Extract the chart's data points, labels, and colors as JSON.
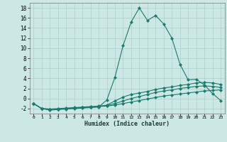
{
  "xlabel": "Humidex (Indice chaleur)",
  "x": [
    0,
    1,
    2,
    3,
    4,
    5,
    6,
    7,
    8,
    9,
    10,
    11,
    12,
    13,
    14,
    15,
    16,
    17,
    18,
    19,
    20,
    21,
    22,
    23
  ],
  "line1": [
    -1,
    -2,
    -2.3,
    -2.2,
    -2.1,
    -2.0,
    -1.9,
    -1.8,
    -1.7,
    -0.3,
    4.2,
    10.5,
    15.2,
    18.0,
    15.5,
    16.5,
    14.8,
    12.0,
    6.8,
    3.7,
    3.8,
    2.7,
    1.0,
    -0.4
  ],
  "line2": [
    -1,
    -2,
    -2.1,
    -2.1,
    -2.0,
    -1.9,
    -1.8,
    -1.7,
    -1.6,
    -1.3,
    -0.5,
    0.3,
    0.8,
    1.1,
    1.4,
    1.8,
    2.1,
    2.3,
    2.6,
    2.8,
    3.1,
    3.2,
    3.1,
    2.8
  ],
  "line3": [
    -1,
    -2,
    -2.1,
    -2.0,
    -1.9,
    -1.8,
    -1.7,
    -1.6,
    -1.5,
    -1.4,
    -1.0,
    -0.5,
    0.0,
    0.4,
    0.8,
    1.2,
    1.5,
    1.7,
    2.0,
    2.2,
    2.4,
    2.5,
    2.4,
    2.2
  ],
  "line4": [
    -1,
    -2,
    -2.2,
    -2.1,
    -2.0,
    -1.9,
    -1.8,
    -1.7,
    -1.6,
    -1.5,
    -1.3,
    -1.0,
    -0.7,
    -0.4,
    -0.1,
    0.2,
    0.5,
    0.7,
    0.9,
    1.1,
    1.3,
    1.5,
    1.6,
    1.7
  ],
  "line_color": "#1a7a6e",
  "bg_color": "#cce8e4",
  "grid_color": "#aacfcb",
  "ylim": [
    -3,
    19
  ],
  "xlim": [
    -0.5,
    23.5
  ],
  "yticks": [
    -2,
    0,
    2,
    4,
    6,
    8,
    10,
    12,
    14,
    16,
    18
  ],
  "xticks": [
    0,
    1,
    2,
    3,
    4,
    5,
    6,
    7,
    8,
    9,
    10,
    11,
    12,
    13,
    14,
    15,
    16,
    17,
    18,
    19,
    20,
    21,
    22,
    23
  ]
}
